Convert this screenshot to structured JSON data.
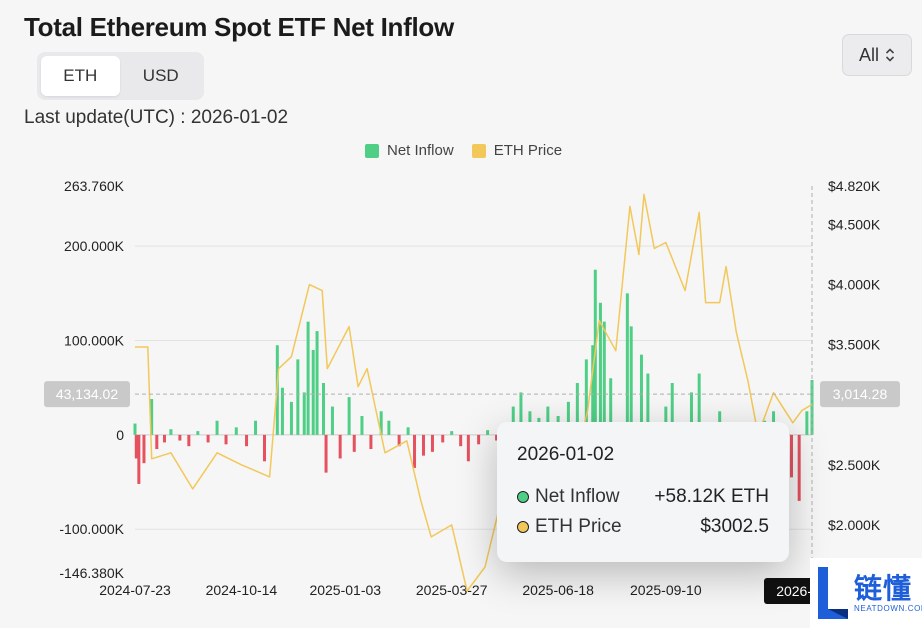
{
  "title": "Total Ethereum Spot ETF Net Inflow",
  "toggle": {
    "options": [
      "ETH",
      "USD"
    ],
    "active": "ETH"
  },
  "range": {
    "label": "All"
  },
  "last_update": "Last update(UTC) : 2026-01-02",
  "tooltip": {
    "date": "2026-01-02",
    "rows": [
      {
        "label": "Net Inflow",
        "value": "+58.12K ETH"
      },
      {
        "label": "ETH Price",
        "value": "$3002.5"
      }
    ]
  },
  "logo": {
    "cn": "链懂",
    "en": "NEATDOWN.COM"
  },
  "colors": {
    "inflow": "#4fcf86",
    "outflow": "#e5515f",
    "price": "#f2c85a"
  },
  "chart_data": {
    "type": "bar",
    "legend": [
      "Net Inflow",
      "ETH Price"
    ],
    "legend_position": "top-center",
    "grid": true,
    "x_tick_labels": [
      "2024-07-23",
      "2024-10-14",
      "2025-01-03",
      "2025-03-27",
      "2025-06-18",
      "2025-09-10",
      "2026-01-02"
    ],
    "y_left_ticks": [
      "263.760K",
      "200.000K",
      "100.000K",
      "0",
      "-100.000K",
      "-146.380K"
    ],
    "y_left_range": [
      -146380,
      263760
    ],
    "y_right_ticks": [
      "$4.820K",
      "$4.500K",
      "$4.000K",
      "$3.500K",
      "$2.500K",
      "$2.000K"
    ],
    "y_right_range": [
      1600,
      4820
    ],
    "crosshair": {
      "left_value": "43,134.02",
      "right_value": "3,014.28",
      "x_label": "2026-01-02"
    },
    "series": [
      {
        "name": "Net Inflow",
        "type": "bar",
        "unit": "ETH",
        "sampled_points": [
          [
            "2024-07-23",
            12000
          ],
          [
            "2024-07-24",
            -25000
          ],
          [
            "2024-07-26",
            -52000
          ],
          [
            "2024-07-30",
            -30000
          ],
          [
            "2024-08-05",
            38000
          ],
          [
            "2024-08-09",
            -15000
          ],
          [
            "2024-08-15",
            -8000
          ],
          [
            "2024-08-20",
            6000
          ],
          [
            "2024-08-27",
            -6000
          ],
          [
            "2024-09-03",
            -12000
          ],
          [
            "2024-09-10",
            4000
          ],
          [
            "2024-09-18",
            -8000
          ],
          [
            "2024-09-25",
            15000
          ],
          [
            "2024-10-02",
            -10000
          ],
          [
            "2024-10-10",
            8000
          ],
          [
            "2024-10-18",
            -12000
          ],
          [
            "2024-10-25",
            15000
          ],
          [
            "2024-11-01",
            -28000
          ],
          [
            "2024-11-11",
            95000
          ],
          [
            "2024-11-15",
            50000
          ],
          [
            "2024-11-22",
            35000
          ],
          [
            "2024-11-27",
            80000
          ],
          [
            "2024-12-02",
            45000
          ],
          [
            "2024-12-05",
            120000
          ],
          [
            "2024-12-09",
            90000
          ],
          [
            "2024-12-12",
            110000
          ],
          [
            "2024-12-17",
            55000
          ],
          [
            "2024-12-19",
            -40000
          ],
          [
            "2024-12-24",
            30000
          ],
          [
            "2024-12-30",
            -25000
          ],
          [
            "2025-01-06",
            40000
          ],
          [
            "2025-01-10",
            -18000
          ],
          [
            "2025-01-16",
            20000
          ],
          [
            "2025-01-23",
            -15000
          ],
          [
            "2025-01-31",
            25000
          ],
          [
            "2025-02-06",
            15000
          ],
          [
            "2025-02-14",
            -12000
          ],
          [
            "2025-02-21",
            8000
          ],
          [
            "2025-02-26",
            -35000
          ],
          [
            "2025-03-05",
            -22000
          ],
          [
            "2025-03-12",
            -18000
          ],
          [
            "2025-03-20",
            -8000
          ],
          [
            "2025-03-27",
            4000
          ],
          [
            "2025-04-03",
            -12000
          ],
          [
            "2025-04-09",
            -28000
          ],
          [
            "2025-04-17",
            -10000
          ],
          [
            "2025-04-24",
            5000
          ],
          [
            "2025-05-01",
            -6000
          ],
          [
            "2025-05-08",
            10000
          ],
          [
            "2025-05-14",
            30000
          ],
          [
            "2025-05-20",
            45000
          ],
          [
            "2025-05-27",
            25000
          ],
          [
            "2025-06-03",
            18000
          ],
          [
            "2025-06-10",
            30000
          ],
          [
            "2025-06-18",
            20000
          ],
          [
            "2025-06-26",
            35000
          ],
          [
            "2025-07-03",
            55000
          ],
          [
            "2025-07-10",
            80000
          ],
          [
            "2025-07-15",
            95000
          ],
          [
            "2025-07-17",
            175000
          ],
          [
            "2025-07-21",
            140000
          ],
          [
            "2025-07-24",
            120000
          ],
          [
            "2025-07-29",
            60000
          ],
          [
            "2025-08-05",
            -30000
          ],
          [
            "2025-08-11",
            150000
          ],
          [
            "2025-08-14",
            115000
          ],
          [
            "2025-08-19",
            -50000
          ],
          [
            "2025-08-22",
            85000
          ],
          [
            "2025-08-27",
            65000
          ],
          [
            "2025-09-02",
            -40000
          ],
          [
            "2025-09-10",
            30000
          ],
          [
            "2025-09-15",
            55000
          ],
          [
            "2025-09-23",
            -35000
          ],
          [
            "2025-09-30",
            45000
          ],
          [
            "2025-10-06",
            65000
          ],
          [
            "2025-10-14",
            -55000
          ],
          [
            "2025-10-22",
            25000
          ],
          [
            "2025-10-28",
            -15000
          ],
          [
            "2025-11-04",
            -60000
          ],
          [
            "2025-11-12",
            -40000
          ],
          [
            "2025-11-20",
            -30000
          ],
          [
            "2025-11-26",
            15000
          ],
          [
            "2025-12-03",
            25000
          ],
          [
            "2025-12-10",
            -20000
          ],
          [
            "2025-12-17",
            -45000
          ],
          [
            "2025-12-23",
            -70000
          ],
          [
            "2025-12-29",
            25000
          ],
          [
            "2026-01-02",
            58120
          ]
        ]
      },
      {
        "name": "ETH Price",
        "type": "line",
        "unit": "USD",
        "sampled_points": [
          [
            "2024-07-23",
            3480
          ],
          [
            "2024-08-02",
            3480
          ],
          [
            "2024-08-05",
            2550
          ],
          [
            "2024-08-20",
            2600
          ],
          [
            "2024-09-06",
            2300
          ],
          [
            "2024-09-25",
            2600
          ],
          [
            "2024-10-14",
            2500
          ],
          [
            "2024-10-25",
            2450
          ],
          [
            "2024-11-05",
            2400
          ],
          [
            "2024-11-12",
            3300
          ],
          [
            "2024-11-22",
            3400
          ],
          [
            "2024-12-06",
            4000
          ],
          [
            "2024-12-16",
            3950
          ],
          [
            "2024-12-20",
            3300
          ],
          [
            "2025-01-06",
            3650
          ],
          [
            "2025-01-13",
            3150
          ],
          [
            "2025-01-20",
            3300
          ],
          [
            "2025-02-03",
            2600
          ],
          [
            "2025-02-20",
            2700
          ],
          [
            "2025-03-03",
            2200
          ],
          [
            "2025-03-11",
            1900
          ],
          [
            "2025-03-27",
            2000
          ],
          [
            "2025-04-08",
            1450
          ],
          [
            "2025-04-22",
            1650
          ],
          [
            "2025-05-09",
            2400
          ],
          [
            "2025-05-20",
            2500
          ],
          [
            "2025-06-10",
            2750
          ],
          [
            "2025-06-22",
            2300
          ],
          [
            "2025-07-03",
            2600
          ],
          [
            "2025-07-11",
            2950
          ],
          [
            "2025-07-20",
            3700
          ],
          [
            "2025-08-02",
            3450
          ],
          [
            "2025-08-13",
            4650
          ],
          [
            "2025-08-20",
            4250
          ],
          [
            "2025-08-24",
            4750
          ],
          [
            "2025-09-01",
            4300
          ],
          [
            "2025-09-10",
            4350
          ],
          [
            "2025-09-25",
            3950
          ],
          [
            "2025-10-06",
            4600
          ],
          [
            "2025-10-11",
            3850
          ],
          [
            "2025-10-22",
            3850
          ],
          [
            "2025-10-27",
            4150
          ],
          [
            "2025-11-04",
            3600
          ],
          [
            "2025-11-13",
            3200
          ],
          [
            "2025-11-21",
            2750
          ],
          [
            "2025-12-03",
            3100
          ],
          [
            "2025-12-18",
            2850
          ],
          [
            "2025-12-25",
            2950
          ],
          [
            "2026-01-02",
            3002.5
          ]
        ]
      }
    ]
  }
}
